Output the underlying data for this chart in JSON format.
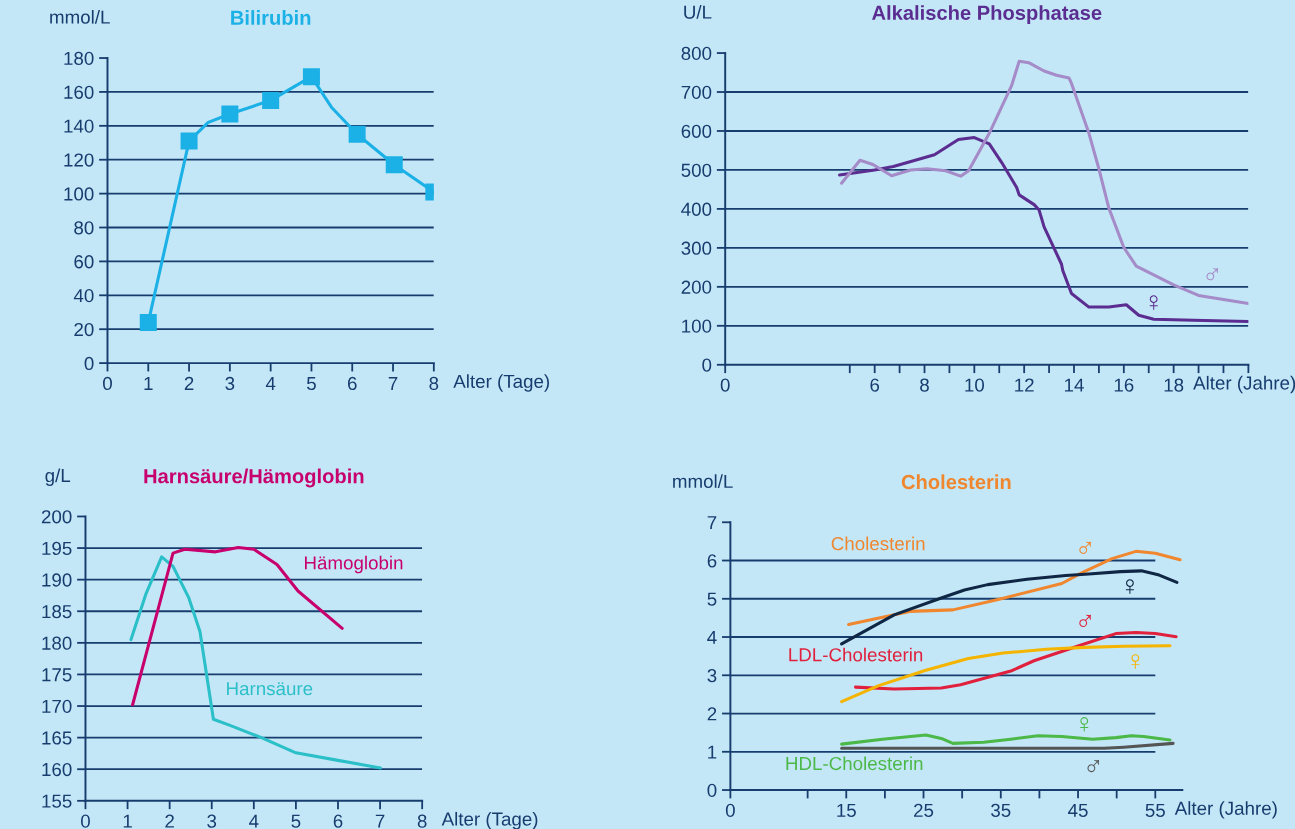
{
  "chart_data": [
    {
      "type": "line",
      "title": "Bilirubin",
      "ylabel": "mmol/L",
      "xlabel": "Alter (Tage)",
      "xlim": [
        0,
        8
      ],
      "xticks": [
        0,
        1,
        2,
        3,
        4,
        5,
        6,
        7,
        8
      ],
      "ylim": [
        0,
        180
      ],
      "yticks": [
        0,
        20,
        40,
        60,
        80,
        100,
        120,
        140,
        160,
        180
      ],
      "grid": "y",
      "series": [
        {
          "color": "#1bb0e6",
          "x": [
            1,
            2,
            2.47,
            3,
            4,
            5,
            5.49,
            6.12,
            7.03,
            8
          ],
          "values": [
            24,
            131,
            142,
            147,
            155,
            169,
            151,
            135,
            117,
            101
          ]
        },
        {
          "type": "scatter",
          "color": "#1bb0e6",
          "marker": "square",
          "x": [
            1,
            2,
            3,
            4,
            5,
            6.12,
            7.03,
            8
          ],
          "values": [
            24,
            131,
            147,
            155,
            169,
            135,
            117,
            101
          ]
        }
      ]
    },
    {
      "type": "line",
      "title": "Alkalische Phosphatase",
      "ylabel": "U/L",
      "xlabel": "Alter (Jahre)",
      "xlim": [
        0,
        21
      ],
      "xticks": [
        0,
        {
          "value": 5,
          "label": null
        },
        6,
        {
          "value": 7,
          "label": null
        },
        8,
        {
          "value": 9,
          "label": null
        },
        10,
        {
          "value": 11,
          "label": null
        },
        12,
        {
          "value": 13,
          "label": null
        },
        14,
        {
          "value": 15,
          "label": null
        },
        16,
        {
          "value": 17,
          "label": null
        },
        18,
        {
          "value": 19,
          "label": null
        },
        {
          "value": 20,
          "label": null
        },
        {
          "value": 21,
          "label": null
        }
      ],
      "ylim": [
        0,
        800
      ],
      "yticks": [
        0,
        100,
        200,
        300,
        400,
        500,
        600,
        700,
        800
      ],
      "grid": "y",
      "series": [
        {
          "name": "♀",
          "color": "#5b2d90",
          "x": [
            4.59,
            6,
            6.75,
            8.4,
            9.36,
            10.0,
            10.6,
            11.1,
            11.7,
            11.8,
            12.4,
            12.6,
            12.8,
            13.5,
            13.55,
            13.9,
            14.6,
            15.4,
            16.1,
            16.6,
            17.2,
            18.8,
            21
          ],
          "values": [
            487,
            500,
            509,
            539,
            578,
            583,
            567,
            519,
            455,
            436,
            411,
            397,
            354,
            258,
            242,
            183,
            148,
            148,
            154,
            127,
            117,
            114,
            111
          ]
        },
        {
          "name": "♂",
          "color": "#a58bc7",
          "x": [
            4.67,
            5.41,
            5.93,
            6.68,
            7.44,
            8.1,
            8.85,
            9.45,
            9.77,
            10.6,
            11.5,
            11.6,
            11.8,
            12.2,
            12.8,
            13.3,
            13.8,
            13.9,
            14.6,
            15.0,
            15.4,
            16.0,
            16.5,
            17.2,
            18.0,
            19.0,
            21
          ],
          "values": [
            466,
            525,
            514,
            485,
            500,
            503,
            498,
            484,
            498,
            594,
            717,
            738,
            779,
            775,
            754,
            743,
            736,
            722,
            594,
            503,
            402,
            301,
            253,
            231,
            205,
            178,
            157
          ]
        }
      ]
    },
    {
      "type": "line",
      "title": "Harnsäure/Hämoglobin",
      "ylabel": "g/L",
      "xlabel": "Alter (Tage)",
      "xlim": [
        0,
        8
      ],
      "xticks": [
        0,
        1,
        2,
        3,
        4,
        5,
        6,
        7,
        8
      ],
      "ylim": [
        155,
        200
      ],
      "yticks": [
        155,
        160,
        165,
        170,
        175,
        180,
        185,
        190,
        195,
        200
      ],
      "grid": "y",
      "series": [
        {
          "name": "Harnsäure",
          "color": "#2bbfc8",
          "x": [
            1.08,
            1.44,
            1.81,
            2.08,
            2.45,
            2.72,
            3.04,
            3.45,
            4.18,
            5.0,
            6.0,
            7.01
          ],
          "values": [
            180.5,
            187.8,
            193.6,
            192.1,
            187.2,
            181.8,
            167.9,
            166.9,
            165.0,
            162.6,
            161.4,
            160.2
          ]
        },
        {
          "name": "Hämoglobin",
          "color": "#c8006e",
          "x": [
            1.12,
            2.08,
            2.36,
            3.09,
            3.63,
            4.0,
            4.55,
            5.05,
            6.1
          ],
          "values": [
            170.2,
            194.2,
            194.8,
            194.4,
            195.1,
            194.8,
            192.4,
            188.2,
            182.3
          ]
        }
      ]
    },
    {
      "type": "line",
      "title": "Cholesterin",
      "ylabel": "mmol/L",
      "xlabel": "Alter (Jahre)",
      "xlim": [
        0,
        58.5
      ],
      "xticks": [
        0,
        {
          "value": 10,
          "label": null
        },
        15,
        {
          "value": 20,
          "label": null
        },
        25,
        {
          "value": 30,
          "label": null
        },
        35,
        {
          "value": 40,
          "label": null
        },
        45,
        {
          "value": 50,
          "label": null
        },
        55
      ],
      "ylim": [
        0,
        7
      ],
      "yticks": [
        0,
        1,
        2,
        3,
        4,
        5,
        6,
        7
      ],
      "grid": "y",
      "series": [
        {
          "name": "♂",
          "color": "#f0862e",
          "x": [
            15.3,
            23.2,
            28.8,
            34.8,
            42.9,
            45.4,
            49.4,
            52.5,
            55.0,
            58.2
          ],
          "values": [
            4.33,
            4.67,
            4.71,
            4.99,
            5.4,
            5.67,
            6.05,
            6.24,
            6.19,
            6.02
          ]
        },
        {
          "name": "♀",
          "color": "#0f2744",
          "x": [
            14.4,
            21.2,
            27.3,
            30.3,
            33.3,
            38.4,
            43.4,
            46.4,
            50.5,
            53.2,
            55.5,
            57.8
          ],
          "values": [
            3.82,
            4.58,
            5.02,
            5.23,
            5.37,
            5.51,
            5.61,
            5.65,
            5.71,
            5.73,
            5.62,
            5.43
          ]
        },
        {
          "name": "♂",
          "color": "#e0203c",
          "x": [
            16.2,
            21.2,
            27.3,
            29.8,
            36.3,
            39.3,
            45.4,
            49.9,
            52.5,
            55.0,
            57.7
          ],
          "values": [
            2.69,
            2.64,
            2.67,
            2.75,
            3.11,
            3.38,
            3.79,
            4.09,
            4.12,
            4.09,
            4.01
          ]
        },
        {
          "name": "♀",
          "color": "#f5b400",
          "x": [
            14.4,
            19.2,
            25.3,
            30.8,
            35.3,
            40.9,
            45.9,
            50.9,
            56.9
          ],
          "values": [
            2.31,
            2.73,
            3.13,
            3.44,
            3.58,
            3.68,
            3.73,
            3.76,
            3.77
          ]
        },
        {
          "name": "♀",
          "color": "#4cb848",
          "x": [
            14.4,
            19.7,
            25.3,
            27.3,
            28.8,
            32.8,
            36.3,
            39.8,
            42.9,
            46.9,
            49.9,
            51.9,
            53.5,
            56.9
          ],
          "values": [
            1.2,
            1.33,
            1.44,
            1.35,
            1.22,
            1.25,
            1.33,
            1.42,
            1.4,
            1.33,
            1.37,
            1.42,
            1.4,
            1.31
          ]
        },
        {
          "name": "♂",
          "color": "#555555",
          "x": [
            14.4,
            48.4,
            50.9,
            57.3
          ],
          "values": [
            1.09,
            1.09,
            1.12,
            1.22
          ]
        }
      ],
      "annotations": [
        "Cholesterin",
        "LDL-Cholesterin",
        "HDL-Cholesterin"
      ]
    }
  ]
}
